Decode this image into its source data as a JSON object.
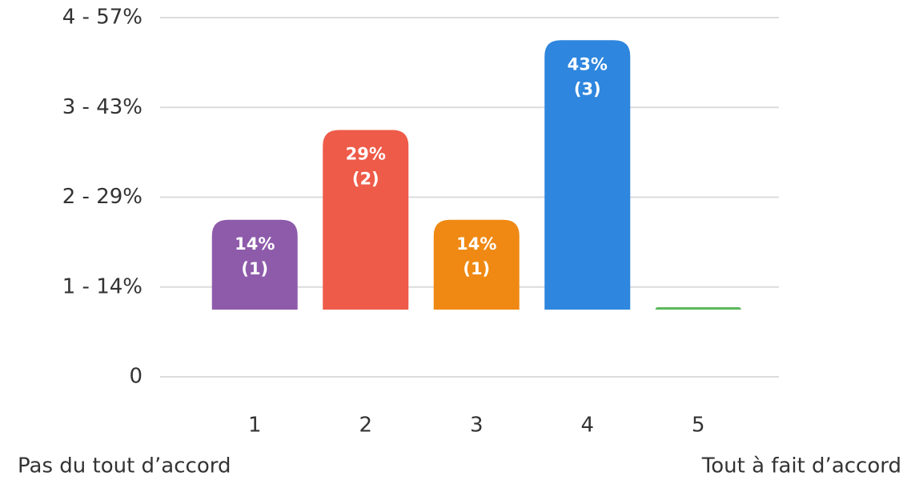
{
  "chart_data": {
    "type": "bar",
    "categories": [
      "1",
      "2",
      "3",
      "4",
      "5"
    ],
    "values": [
      1,
      2,
      1,
      3,
      0
    ],
    "value_labels": [
      [
        "14%",
        "(1)"
      ],
      [
        "29%",
        "(2)"
      ],
      [
        "14%",
        "(1)"
      ],
      [
        "43%",
        "(3)"
      ],
      null
    ],
    "colors": [
      "#8e5bab",
      "#ee5b48",
      "#ef8913",
      "#2e86de",
      "#5cb85c"
    ],
    "ylim": [
      0,
      4
    ],
    "yticks": [
      0,
      {
        "value": 1,
        "label": "1 - 14%"
      },
      {
        "value": 2,
        "label": "2 - 29%"
      },
      {
        "value": 3,
        "label": "3 - 43%"
      },
      {
        "value": 4,
        "label": "4 - 57%"
      }
    ],
    "grid": true,
    "annotations": [
      "Pas du tout d’accord",
      "Tout à fait d’accord"
    ]
  }
}
